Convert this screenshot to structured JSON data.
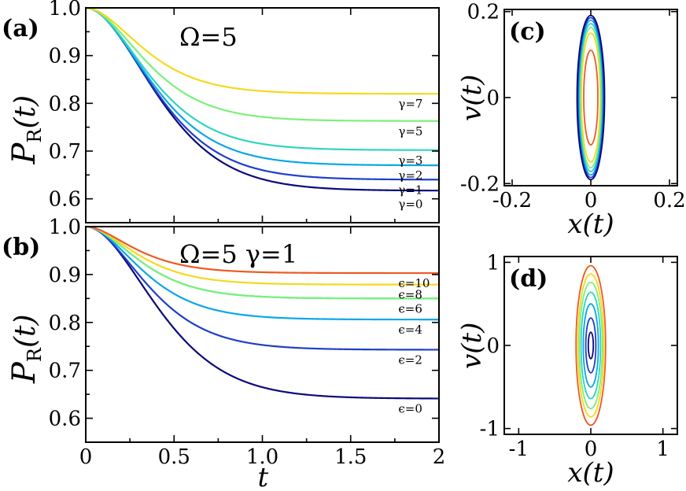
{
  "chart_data": [
    {
      "id": "a",
      "type": "line",
      "panel_label": "(a)",
      "annotation": "Ω=5",
      "xlabel": "",
      "ylabel": "P_R(t)",
      "ylabel_main": "P",
      "ylabel_sub": "R",
      "ylabel_arg": "(t)",
      "xlim": [
        0,
        2
      ],
      "ylim": [
        0.55,
        1.0
      ],
      "yticks": [
        "0.6",
        "0.7",
        "0.8",
        "0.9",
        "1.0"
      ],
      "xticks": [],
      "series": [
        {
          "name": "γ=0",
          "final": 0.617,
          "rate": 5.5,
          "color": "#0a0a7a"
        },
        {
          "name": "γ=1",
          "final": 0.64,
          "rate": 6.0,
          "color": "#1f3fc8"
        },
        {
          "name": "γ=2",
          "final": 0.67,
          "rate": 6.6,
          "color": "#0aa6e8"
        },
        {
          "name": "γ=3",
          "final": 0.702,
          "rate": 7.2,
          "color": "#30d4c0"
        },
        {
          "name": "γ=5",
          "final": 0.763,
          "rate": 8.2,
          "color": "#7cf07a"
        },
        {
          "name": "γ=7",
          "final": 0.82,
          "rate": 9.2,
          "color": "#f5d91e"
        }
      ]
    },
    {
      "id": "b",
      "type": "line",
      "panel_label": "(b)",
      "annotation": "Ω=5    γ=1",
      "xlabel": "t",
      "ylabel": "P_R(t)",
      "ylabel_main": "P",
      "ylabel_sub": "R",
      "ylabel_arg": "(t)",
      "xlim": [
        0,
        2
      ],
      "ylim": [
        0.55,
        1.0
      ],
      "yticks": [
        "0.6",
        "0.7",
        "0.8",
        "0.9",
        "1.0"
      ],
      "xticks": [
        "0",
        "0.5",
        "1.0",
        "1.5",
        "2"
      ],
      "series": [
        {
          "name": "ϵ=0",
          "final": 0.641,
          "rate": 5.3,
          "color": "#0a0a7a"
        },
        {
          "name": "ϵ=2",
          "final": 0.743,
          "rate": 7.8,
          "color": "#1f3fc8"
        },
        {
          "name": "ϵ=4",
          "final": 0.806,
          "rate": 9.5,
          "color": "#0aa6e8"
        },
        {
          "name": "",
          "final": 0.85,
          "rate": 11.0,
          "color": "#30d4c0"
        },
        {
          "name": "ϵ=6",
          "final": 0.85,
          "rate": 11.0,
          "color": "#7cf07a"
        },
        {
          "name": "ϵ=8",
          "final": 0.879,
          "rate": 12.5,
          "color": "#f5d91e"
        },
        {
          "name": "ϵ=10",
          "final": 0.903,
          "rate": 14.0,
          "color": "#ee5a24"
        }
      ]
    },
    {
      "id": "c",
      "type": "line",
      "panel_label": "(c)",
      "xlabel": "x(t)",
      "ylabel": "v(t)",
      "xlim": [
        -0.22,
        0.22
      ],
      "ylim": [
        -0.205,
        0.205
      ],
      "xticks": [
        "-0.2",
        "0",
        "0.2"
      ],
      "yticks": [
        "-0.2",
        "0",
        "0.2"
      ],
      "ellipses": [
        {
          "rx": 0.018,
          "ry": 0.11,
          "color": "#ee5a24"
        },
        {
          "rx": 0.024,
          "ry": 0.15,
          "color": "#f5d91e"
        },
        {
          "rx": 0.027,
          "ry": 0.163,
          "color": "#7cf07a"
        },
        {
          "rx": 0.029,
          "ry": 0.172,
          "color": "#30d4c0"
        },
        {
          "rx": 0.031,
          "ry": 0.18,
          "color": "#0aa6e8"
        },
        {
          "rx": 0.033,
          "ry": 0.186,
          "color": "#1f3fc8"
        },
        {
          "rx": 0.035,
          "ry": 0.191,
          "color": "#0a0a7a"
        }
      ]
    },
    {
      "id": "d",
      "type": "line",
      "panel_label": "(d)",
      "xlabel": "x(t)",
      "ylabel": "v(t)",
      "xlim": [
        -1.2,
        1.2
      ],
      "ylim": [
        -1.07,
        1.07
      ],
      "xticks": [
        "-1",
        "0",
        "1"
      ],
      "yticks": [
        "-1",
        "0",
        "1"
      ],
      "ellipses": [
        {
          "rx": 0.035,
          "ry": 0.16,
          "color": "#0a0a7a"
        },
        {
          "rx": 0.07,
          "ry": 0.33,
          "color": "#1f3fc8"
        },
        {
          "rx": 0.105,
          "ry": 0.5,
          "color": "#0aa6e8"
        },
        {
          "rx": 0.135,
          "ry": 0.64,
          "color": "#30d4c0"
        },
        {
          "rx": 0.16,
          "ry": 0.76,
          "color": "#7cf07a"
        },
        {
          "rx": 0.18,
          "ry": 0.86,
          "color": "#f5d91e"
        },
        {
          "rx": 0.205,
          "ry": 0.96,
          "color": "#ee5a24"
        }
      ]
    }
  ]
}
